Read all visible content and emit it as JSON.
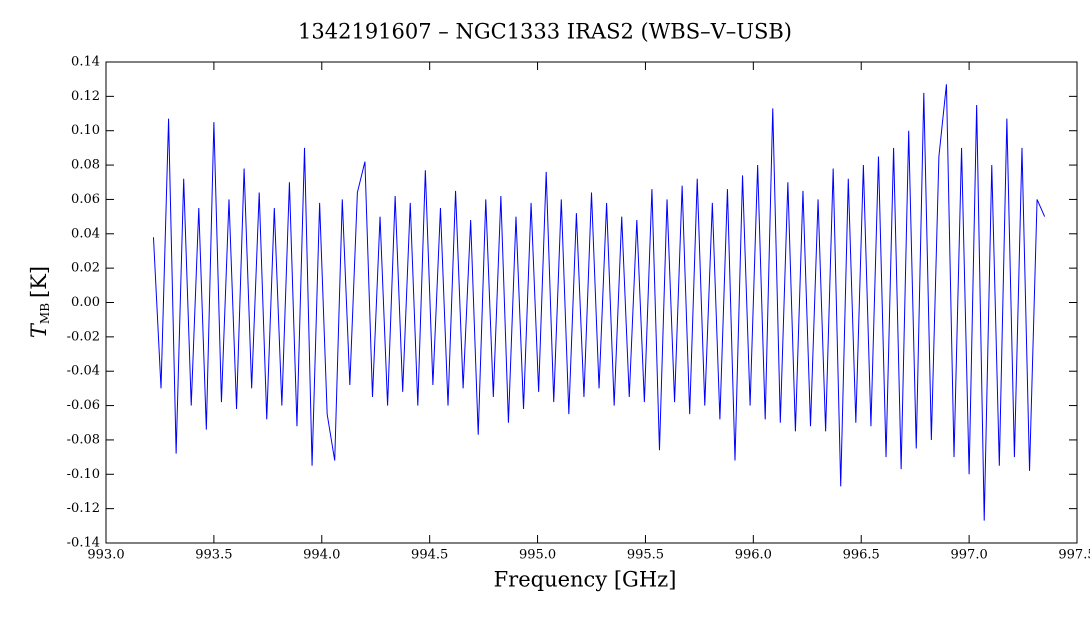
{
  "chart_data": {
    "type": "line",
    "title": "1342191607 – NGC1333 IRAS2 (WBS–V–USB)",
    "xlabel": "Frequency [GHz]",
    "ylabel": {
      "symbol": "T",
      "subscript": "MB",
      "unit": "[K]"
    },
    "xlim": [
      993.0,
      997.5
    ],
    "ylim": [
      -0.14,
      0.14
    ],
    "xticks": [
      {
        "value": 993,
        "label": "993.0"
      },
      993.5,
      {
        "value": 994,
        "label": "994.0"
      },
      994.5,
      {
        "value": 995,
        "label": "995.0"
      },
      995.5,
      {
        "value": 996,
        "label": "996.0"
      },
      996.5,
      {
        "value": 997,
        "label": "997.0"
      },
      997.5
    ],
    "yticks": [
      -0.14,
      -0.12,
      {
        "value": -0.1,
        "label": "-0.10"
      },
      -0.08,
      -0.06,
      -0.04,
      -0.02,
      {
        "value": 0,
        "label": "0.00"
      },
      0.02,
      0.04,
      0.06,
      0.08,
      {
        "value": 0.1,
        "label": "0.10"
      },
      0.12,
      0.14
    ],
    "grid": false,
    "series": [
      {
        "color": "#0000ff",
        "x": [
          993.22,
          993.255,
          993.29,
          993.325,
          993.36,
          993.395,
          993.43,
          993.465,
          993.5,
          993.535,
          993.57,
          993.605,
          993.64,
          993.675,
          993.71,
          993.745,
          993.78,
          993.815,
          993.85,
          993.885,
          993.92,
          993.955,
          993.99,
          994.025,
          994.06,
          994.095,
          994.13,
          994.165,
          994.2,
          994.235,
          994.27,
          994.305,
          994.34,
          994.375,
          994.41,
          994.445,
          994.48,
          994.515,
          994.55,
          994.585,
          994.62,
          994.655,
          994.69,
          994.725,
          994.76,
          994.795,
          994.83,
          994.865,
          994.9,
          994.935,
          994.97,
          995.005,
          995.04,
          995.075,
          995.11,
          995.145,
          995.18,
          995.215,
          995.25,
          995.285,
          995.32,
          995.355,
          995.39,
          995.425,
          995.46,
          995.495,
          995.53,
          995.565,
          995.6,
          995.635,
          995.67,
          995.705,
          995.74,
          995.775,
          995.81,
          995.845,
          995.88,
          995.915,
          995.95,
          995.985,
          996.02,
          996.055,
          996.09,
          996.125,
          996.16,
          996.195,
          996.23,
          996.265,
          996.3,
          996.335,
          996.37,
          996.405,
          996.44,
          996.475,
          996.51,
          996.545,
          996.58,
          996.615,
          996.65,
          996.685,
          996.72,
          996.755,
          996.79,
          996.825,
          996.86,
          996.895,
          996.93,
          996.965,
          997.0,
          997.035,
          997.07,
          997.105,
          997.14,
          997.175,
          997.21,
          997.245,
          997.28,
          997.315,
          997.35
        ],
        "values": [
          0.038,
          -0.05,
          0.107,
          -0.088,
          0.072,
          -0.06,
          0.055,
          -0.074,
          0.105,
          -0.058,
          0.06,
          -0.062,
          0.078,
          -0.05,
          0.064,
          -0.068,
          0.055,
          -0.06,
          0.07,
          -0.072,
          0.09,
          -0.095,
          0.058,
          -0.065,
          -0.092,
          0.06,
          -0.048,
          0.064,
          0.082,
          -0.055,
          0.05,
          -0.06,
          0.062,
          -0.052,
          0.058,
          -0.06,
          0.077,
          -0.048,
          0.055,
          -0.06,
          0.065,
          -0.05,
          0.048,
          -0.077,
          0.06,
          -0.055,
          0.062,
          -0.07,
          0.05,
          -0.062,
          0.058,
          -0.052,
          0.076,
          -0.058,
          0.06,
          -0.065,
          0.052,
          -0.055,
          0.064,
          -0.05,
          0.058,
          -0.06,
          0.05,
          -0.055,
          0.048,
          -0.058,
          0.066,
          -0.086,
          0.06,
          -0.058,
          0.068,
          -0.065,
          0.072,
          -0.06,
          0.058,
          -0.068,
          0.066,
          -0.092,
          0.074,
          -0.06,
          0.08,
          -0.068,
          0.113,
          -0.07,
          0.07,
          -0.075,
          0.065,
          -0.072,
          0.06,
          -0.075,
          0.078,
          -0.107,
          0.072,
          -0.07,
          0.08,
          -0.072,
          0.085,
          -0.09,
          0.09,
          -0.097,
          0.1,
          -0.085,
          0.122,
          -0.08,
          0.085,
          0.127,
          -0.09,
          0.09,
          -0.1,
          0.115,
          -0.127,
          0.08,
          -0.095,
          0.107,
          -0.09,
          0.09,
          -0.098,
          0.06,
          0.05
        ]
      }
    ]
  }
}
